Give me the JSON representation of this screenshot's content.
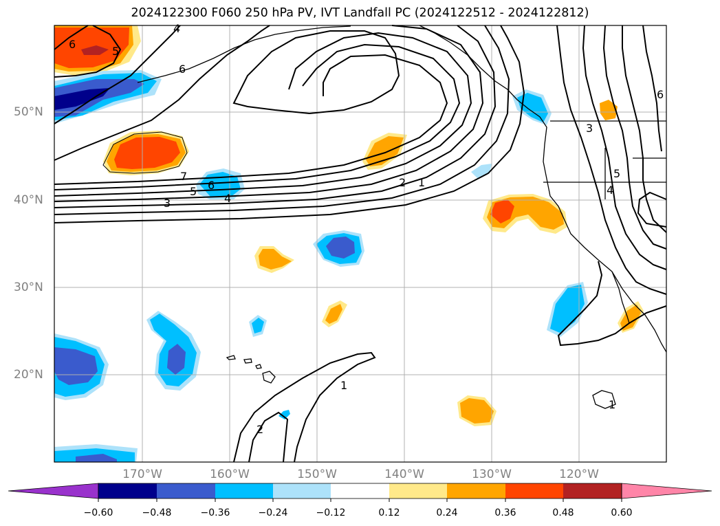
{
  "title": "2024122300 F060 250 hPa PV, IVT Landfall PC (2024122512 - 2024122812)",
  "map": {
    "lon_labels": [
      "170°W",
      "160°W",
      "150°W",
      "140°W",
      "130°W",
      "120°W"
    ],
    "lat_labels": [
      "50°N",
      "40°N",
      "30°N",
      "20°N"
    ],
    "contour_labels": [
      "6",
      "5",
      "6",
      "4",
      "7",
      "6",
      "5",
      "4",
      "3",
      "2",
      "1",
      "3",
      "5",
      "4",
      "6",
      "1",
      "2",
      "1"
    ]
  },
  "colorbar": {
    "ticks": [
      "−0.60",
      "−0.48",
      "−0.36",
      "−0.24",
      "−0.12",
      "0.12",
      "0.24",
      "0.36",
      "0.48",
      "0.60"
    ],
    "colors": [
      "#9932CC",
      "#00008B",
      "#3A5BCD",
      "#00BFFF",
      "#ADE2FA",
      "#FFFFFF",
      "#FFE98A",
      "#FFA500",
      "#FF4500",
      "#B22222",
      "#FF85A8"
    ]
  },
  "colors": {
    "grid": "#b0b0b0",
    "contour": "#000000",
    "tick_label": "#808080"
  }
}
